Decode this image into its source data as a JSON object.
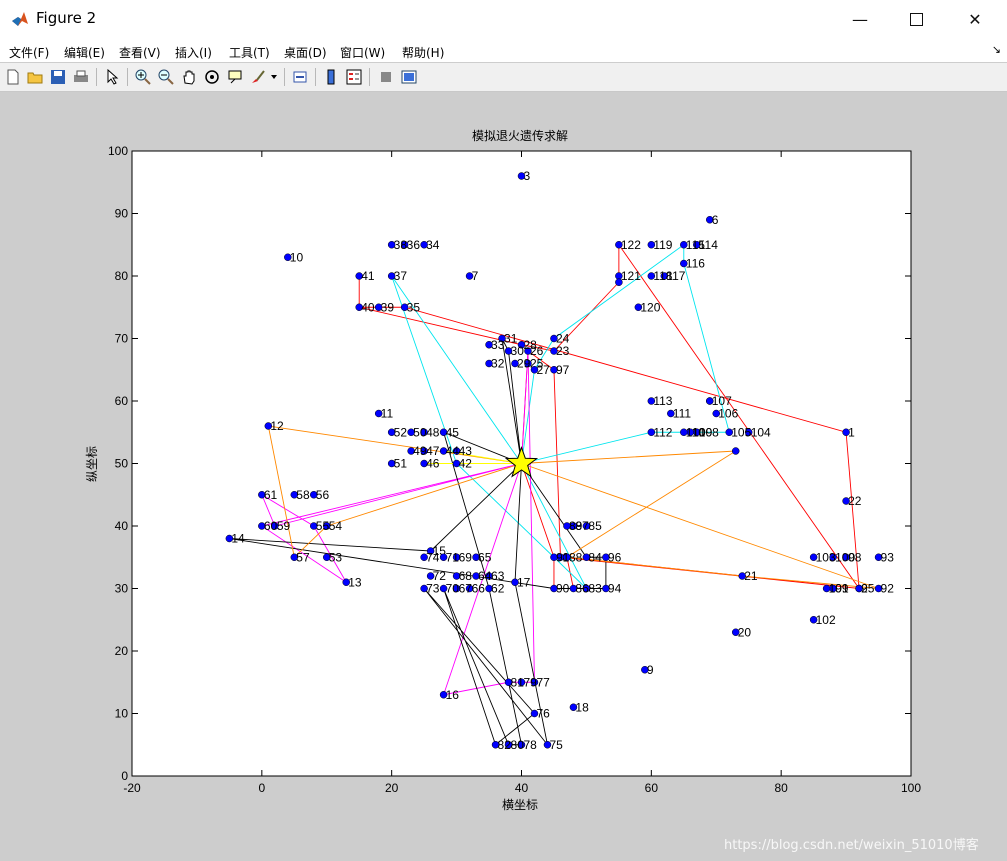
{
  "window": {
    "title": "Figure 2"
  },
  "menu": [
    "文件(F)",
    "编辑(E)",
    "查看(V)",
    "插入(I)",
    "工具(T)",
    "桌面(D)",
    "窗口(W)",
    "帮助(H)"
  ],
  "toolbar_icons": [
    "new-figure-icon",
    "open-file-icon",
    "save-icon",
    "print-icon",
    "edit-plot-arrow-icon",
    "zoom-in-icon",
    "zoom-out-icon",
    "pan-hand-icon",
    "rotate-3d-icon",
    "data-cursor-icon",
    "brush-icon",
    "link-plot-icon",
    "colorbar-icon",
    "legend-icon",
    "hide-plot-tools-icon",
    "show-plot-tools-icon"
  ],
  "watermark": "https://blog.csdn.net/weixin_51010博客",
  "chart_data": {
    "type": "scatter",
    "title": "模拟退火遗传求解",
    "xlabel": "横坐标",
    "ylabel": "纵坐标",
    "xlim": [
      -20,
      100
    ],
    "ylim": [
      0,
      100
    ],
    "xticks": [
      -20,
      0,
      20,
      40,
      60,
      80,
      100
    ],
    "yticks": [
      0,
      10,
      20,
      30,
      40,
      50,
      60,
      70,
      80,
      90,
      100
    ],
    "grid": false,
    "marker_color": "#0000ff",
    "center": {
      "x": 40,
      "y": 50,
      "marker": "star",
      "color": "#ffff00"
    },
    "points": [
      {
        "id": "1",
        "x": 90,
        "y": 55
      },
      {
        "id": "2",
        "x": 92,
        "y": 30
      },
      {
        "id": "3",
        "x": 40,
        "y": 96
      },
      {
        "id": "6",
        "x": 69,
        "y": 89
      },
      {
        "id": "7",
        "x": 32,
        "y": 80
      },
      {
        "id": "8",
        "x": 46,
        "y": 35
      },
      {
        "id": "9",
        "x": 59,
        "y": 17
      },
      {
        "id": "10",
        "x": 4,
        "y": 83
      },
      {
        "id": "11",
        "x": 18,
        "y": 58
      },
      {
        "id": "12",
        "x": 1,
        "y": 56
      },
      {
        "id": "13",
        "x": 13,
        "y": 31
      },
      {
        "id": "14",
        "x": -5,
        "y": 38
      },
      {
        "id": "15",
        "x": 26,
        "y": 36
      },
      {
        "id": "16",
        "x": 28,
        "y": 13
      },
      {
        "id": "17",
        "x": 39,
        "y": 31
      },
      {
        "id": "18",
        "x": 48,
        "y": 11
      },
      {
        "id": "20",
        "x": 73,
        "y": 23
      },
      {
        "id": "21",
        "x": 74,
        "y": 32
      },
      {
        "id": "22",
        "x": 90,
        "y": 44
      },
      {
        "id": "23",
        "x": 45,
        "y": 68
      },
      {
        "id": "24",
        "x": 45,
        "y": 70
      },
      {
        "id": "25",
        "x": 41,
        "y": 66
      },
      {
        "id": "26",
        "x": 41,
        "y": 68
      },
      {
        "id": "27",
        "x": 42,
        "y": 65
      },
      {
        "id": "28",
        "x": 40,
        "y": 69
      },
      {
        "id": "29",
        "x": 39,
        "y": 66
      },
      {
        "id": "30",
        "x": 38,
        "y": 68
      },
      {
        "id": "31",
        "x": 37,
        "y": 70
      },
      {
        "id": "32",
        "x": 35,
        "y": 66
      },
      {
        "id": "33",
        "x": 35,
        "y": 69
      },
      {
        "id": "34",
        "x": 25,
        "y": 85
      },
      {
        "id": "35",
        "x": 22,
        "y": 75
      },
      {
        "id": "36",
        "x": 22,
        "y": 85
      },
      {
        "id": "37",
        "x": 20,
        "y": 80
      },
      {
        "id": "38",
        "x": 20,
        "y": 85
      },
      {
        "id": "39",
        "x": 18,
        "y": 75
      },
      {
        "id": "40",
        "x": 15,
        "y": 75
      },
      {
        "id": "41",
        "x": 15,
        "y": 80
      },
      {
        "id": "42",
        "x": 30,
        "y": 50
      },
      {
        "id": "43",
        "x": 30,
        "y": 52
      },
      {
        "id": "44",
        "x": 28,
        "y": 52
      },
      {
        "id": "45",
        "x": 28,
        "y": 55
      },
      {
        "id": "46",
        "x": 25,
        "y": 50
      },
      {
        "id": "47",
        "x": 25,
        "y": 52
      },
      {
        "id": "48",
        "x": 25,
        "y": 55
      },
      {
        "id": "49",
        "x": 23,
        "y": 52
      },
      {
        "id": "50",
        "x": 23,
        "y": 55
      },
      {
        "id": "51",
        "x": 20,
        "y": 50
      },
      {
        "id": "52",
        "x": 20,
        "y": 55
      },
      {
        "id": "53",
        "x": 10,
        "y": 35
      },
      {
        "id": "54",
        "x": 10,
        "y": 40
      },
      {
        "id": "55",
        "x": 8,
        "y": 40
      },
      {
        "id": "56",
        "x": 8,
        "y": 45
      },
      {
        "id": "57",
        "x": 5,
        "y": 35
      },
      {
        "id": "58",
        "x": 5,
        "y": 45
      },
      {
        "id": "59",
        "x": 2,
        "y": 40
      },
      {
        "id": "60",
        "x": 0,
        "y": 40
      },
      {
        "id": "61",
        "x": 0,
        "y": 45
      },
      {
        "id": "62",
        "x": 35,
        "y": 30
      },
      {
        "id": "63",
        "x": 35,
        "y": 32
      },
      {
        "id": "64",
        "x": 33,
        "y": 32
      },
      {
        "id": "65",
        "x": 33,
        "y": 35
      },
      {
        "id": "66",
        "x": 32,
        "y": 30
      },
      {
        "id": "67",
        "x": 30,
        "y": 30
      },
      {
        "id": "68",
        "x": 30,
        "y": 32
      },
      {
        "id": "69",
        "x": 30,
        "y": 35
      },
      {
        "id": "70",
        "x": 28,
        "y": 30
      },
      {
        "id": "71",
        "x": 28,
        "y": 35
      },
      {
        "id": "72",
        "x": 26,
        "y": 32
      },
      {
        "id": "73",
        "x": 25,
        "y": 30
      },
      {
        "id": "74",
        "x": 25,
        "y": 35
      },
      {
        "id": "75",
        "x": 44,
        "y": 5
      },
      {
        "id": "76",
        "x": 42,
        "y": 10
      },
      {
        "id": "77",
        "x": 42,
        "y": 15
      },
      {
        "id": "78",
        "x": 40,
        "y": 5
      },
      {
        "id": "79",
        "x": 40,
        "y": 15
      },
      {
        "id": "80",
        "x": 38,
        "y": 5
      },
      {
        "id": "81",
        "x": 38,
        "y": 15
      },
      {
        "id": "82",
        "x": 36,
        "y": 5
      },
      {
        "id": "83",
        "x": 50,
        "y": 30
      },
      {
        "id": "84",
        "x": 50,
        "y": 35
      },
      {
        "id": "85",
        "x": 50,
        "y": 40
      },
      {
        "id": "86",
        "x": 48,
        "y": 30
      },
      {
        "id": "87",
        "x": 48,
        "y": 40
      },
      {
        "id": "88",
        "x": 47,
        "y": 35
      },
      {
        "id": "89",
        "x": 47,
        "y": 40
      },
      {
        "id": "90",
        "x": 45,
        "y": 30
      },
      {
        "id": "91",
        "x": 45,
        "y": 35
      },
      {
        "id": "92",
        "x": 95,
        "y": 30
      },
      {
        "id": "93",
        "x": 95,
        "y": 35
      },
      {
        "id": "94",
        "x": 53,
        "y": 30
      },
      {
        "id": "95",
        "x": 92,
        "y": 30
      },
      {
        "id": "96",
        "x": 53,
        "y": 35
      },
      {
        "id": "97",
        "x": 45,
        "y": 65
      },
      {
        "id": "98",
        "x": 90,
        "y": 35
      },
      {
        "id": "99",
        "x": 88,
        "y": 30
      },
      {
        "id": "100",
        "x": 88,
        "y": 35
      },
      {
        "id": "101",
        "x": 87,
        "y": 30
      },
      {
        "id": "102",
        "x": 85,
        "y": 25
      },
      {
        "id": "103",
        "x": 85,
        "y": 35
      },
      {
        "id": "104",
        "x": 75,
        "y": 55
      },
      {
        "id": "105",
        "x": 72,
        "y": 55
      },
      {
        "id": "106",
        "x": 70,
        "y": 58
      },
      {
        "id": "107",
        "x": 69,
        "y": 60
      },
      {
        "id": "108",
        "x": 67,
        "y": 55
      },
      {
        "id": "109",
        "x": 66,
        "y": 55
      },
      {
        "id": "110",
        "x": 65,
        "y": 55
      },
      {
        "id": "111",
        "x": 63,
        "y": 58
      },
      {
        "id": "112",
        "x": 60,
        "y": 55
      },
      {
        "id": "113",
        "x": 60,
        "y": 60
      },
      {
        "id": "114",
        "x": 67,
        "y": 85
      },
      {
        "id": "115",
        "x": 65,
        "y": 85
      },
      {
        "id": "116",
        "x": 65,
        "y": 82
      },
      {
        "id": "117",
        "x": 62,
        "y": 80
      },
      {
        "id": "118",
        "x": 60,
        "y": 80
      },
      {
        "id": "119",
        "x": 60,
        "y": 85
      },
      {
        "id": "120",
        "x": 58,
        "y": 75
      },
      {
        "id": "121",
        "x": 55,
        "y": 80
      },
      {
        "id": "122",
        "x": 55,
        "y": 85
      },
      {
        "id": "123",
        "x": 55,
        "y": 79
      },
      {
        "id": "124",
        "x": 73,
        "y": 52
      },
      {
        "id": "125",
        "x": 69,
        "y": 60
      }
    ],
    "label_overrides": {
      "123": "",
      "124": "",
      "125": ""
    },
    "routes": [
      {
        "color": "#ff0000",
        "stops": [
          "center",
          "26",
          "97",
          "8",
          "2",
          "1",
          "35",
          "40",
          "41",
          "40",
          "28",
          "23",
          "123",
          "122",
          "95",
          "21",
          "88",
          "86",
          "90",
          "91",
          "center"
        ]
      },
      {
        "color": "#00e5ee",
        "stops": [
          "center",
          "27",
          "24",
          "115",
          "116",
          "105",
          "112",
          "center",
          "37",
          "42",
          "83",
          "center"
        ]
      },
      {
        "color": "#ff00ff",
        "stops": [
          "center",
          "60",
          "13",
          "55",
          "61",
          "59",
          "center",
          "16",
          "81",
          "77",
          "26",
          "center"
        ]
      },
      {
        "color": "#000000",
        "stops": [
          "center",
          "31",
          "30",
          "center",
          "84",
          "96",
          "94",
          "90",
          "14",
          "15",
          "center",
          "45",
          "62",
          "78",
          "80",
          "70",
          "82",
          "76",
          "73",
          "75",
          "17",
          "center"
        ]
      },
      {
        "color": "#ff8800",
        "stops": [
          "center",
          "12",
          "57",
          "54",
          "center",
          "124",
          "88",
          "21",
          "92",
          "center"
        ]
      },
      {
        "color": "#ffff00",
        "stops": [
          "center",
          "46",
          "center",
          "44",
          "center"
        ]
      }
    ]
  }
}
